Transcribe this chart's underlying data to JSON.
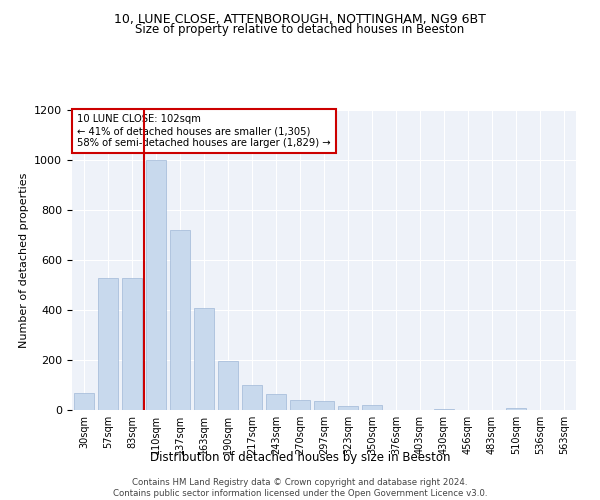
{
  "title1": "10, LUNE CLOSE, ATTENBOROUGH, NOTTINGHAM, NG9 6BT",
  "title2": "Size of property relative to detached houses in Beeston",
  "xlabel": "Distribution of detached houses by size in Beeston",
  "ylabel": "Number of detached properties",
  "categories": [
    "30sqm",
    "57sqm",
    "83sqm",
    "110sqm",
    "137sqm",
    "163sqm",
    "190sqm",
    "217sqm",
    "243sqm",
    "270sqm",
    "297sqm",
    "323sqm",
    "350sqm",
    "376sqm",
    "403sqm",
    "430sqm",
    "456sqm",
    "483sqm",
    "510sqm",
    "536sqm",
    "563sqm"
  ],
  "values": [
    70,
    530,
    530,
    1000,
    720,
    410,
    195,
    100,
    65,
    40,
    35,
    15,
    20,
    0,
    0,
    5,
    0,
    0,
    10,
    0,
    0
  ],
  "bar_color": "#c8d9ed",
  "bar_edge_color": "#a0b8d8",
  "vline_color": "#cc0000",
  "annotation_text": "10 LUNE CLOSE: 102sqm\n← 41% of detached houses are smaller (1,305)\n58% of semi-detached houses are larger (1,829) →",
  "annotation_box_color": "#cc0000",
  "grid_color": "#c8d9ed",
  "background_color": "#eef2f9",
  "footer": "Contains HM Land Registry data © Crown copyright and database right 2024.\nContains public sector information licensed under the Open Government Licence v3.0.",
  "ylim": [
    0,
    1200
  ],
  "yticks": [
    0,
    200,
    400,
    600,
    800,
    1000,
    1200
  ],
  "figsize": [
    6.0,
    5.0
  ],
  "dpi": 100
}
